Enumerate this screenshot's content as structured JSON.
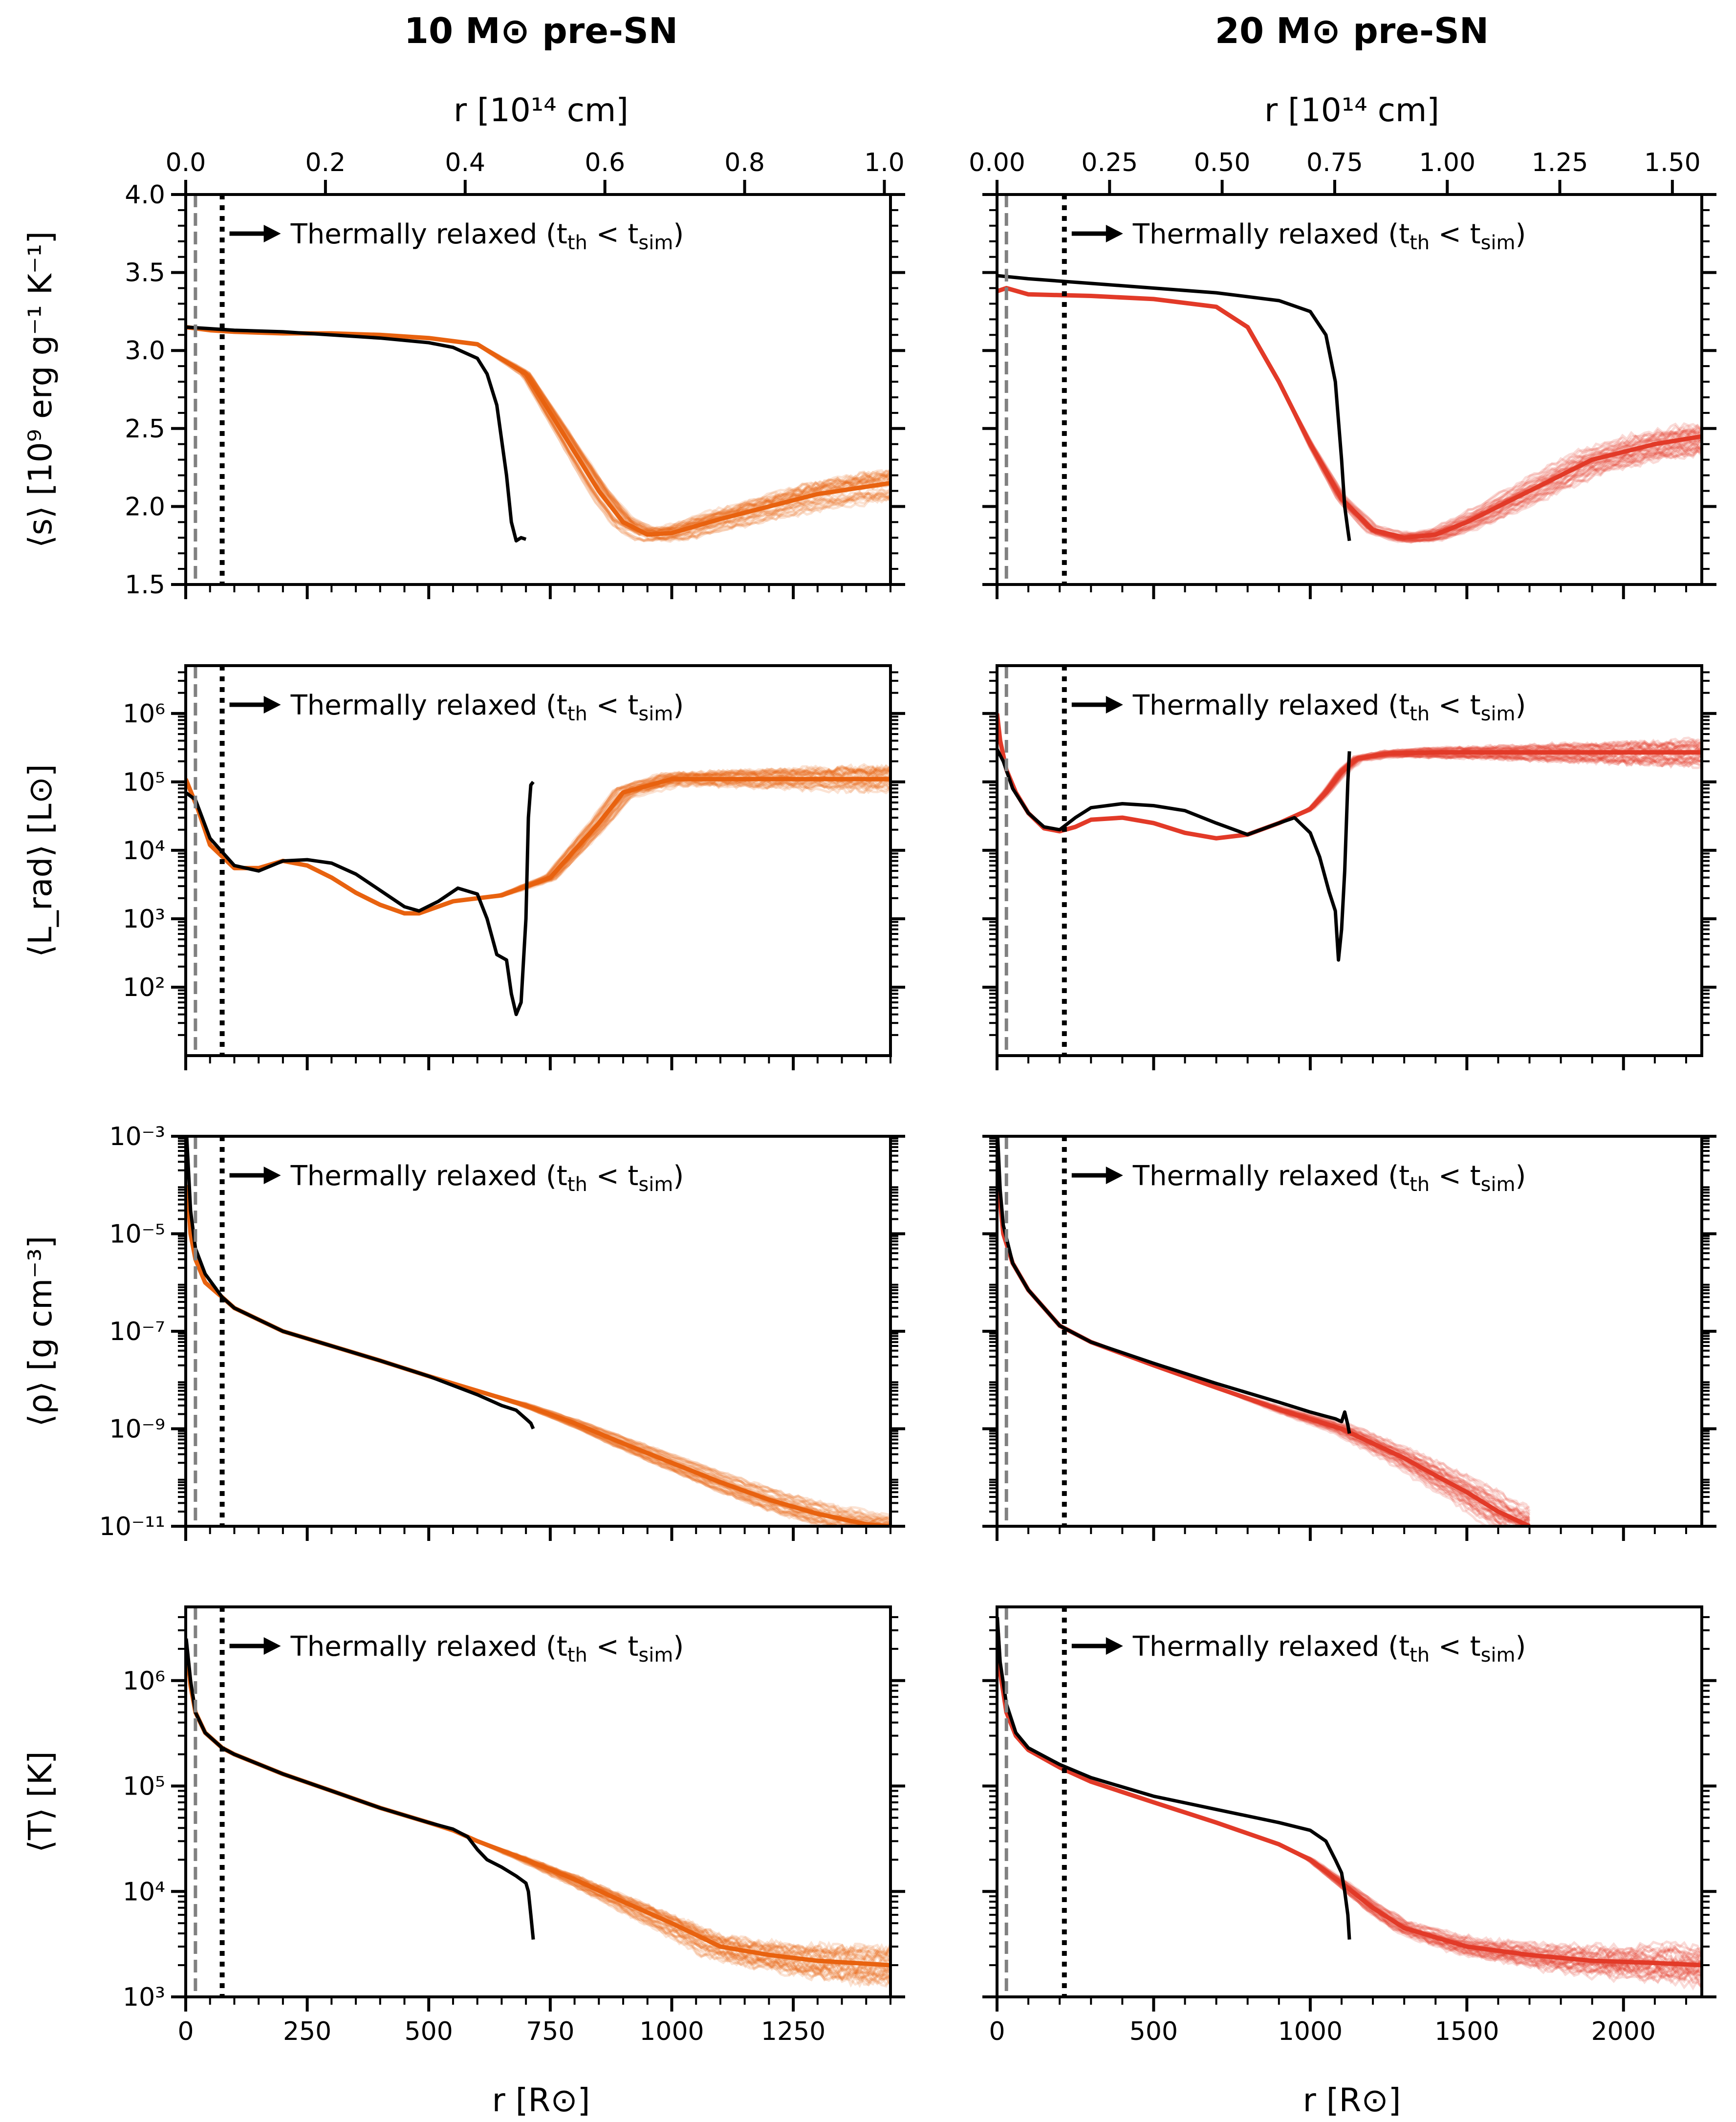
{
  "columns": [
    {
      "title": "10 M⊙ pre-SN",
      "top_axis_label": "r [10¹⁴ cm]",
      "top_ticks": [
        "0.0",
        "0.2",
        "0.4",
        "0.6",
        "0.8",
        "1.0"
      ],
      "top_tick_values": [
        0,
        0.2,
        0.4,
        0.6,
        0.8,
        1.0
      ]
    },
    {
      "title": "20 M⊙ pre-SN",
      "top_axis_label": "r [10¹⁴ cm]",
      "top_ticks": [
        "0.00",
        "0.25",
        "0.50",
        "0.75",
        "1.00",
        "1.25",
        "1.50"
      ],
      "top_tick_values": [
        0,
        0.25,
        0.5,
        0.75,
        1.0,
        1.25,
        1.5
      ]
    }
  ],
  "xlabel": "r [R⊙]",
  "annotation": "Thermally relaxed (t_th < t_sim)",
  "colors": {
    "m10": "#e8620f",
    "m20": "#e23a28",
    "model": "#000000",
    "dashed": "#808080"
  },
  "chart_data": [
    {
      "type": "line",
      "panel": "10 M⊙ entropy",
      "ylabel": "⟨s⟩ [10⁹ erg g⁻¹ K⁻¹]",
      "yscale": "linear",
      "ylim": [
        1.5,
        4.0
      ],
      "xlim": [
        0,
        1450
      ],
      "yticks": [
        "1.5",
        "2.0",
        "2.5",
        "3.0",
        "3.5",
        "4.0"
      ],
      "xticks": [
        "0",
        "250",
        "500",
        "750",
        "1000",
        "1250"
      ],
      "vlines": {
        "dashed": 20,
        "dotted": 75
      },
      "series": [
        {
          "role": "simulation",
          "x": [
            0,
            50,
            100,
            200,
            300,
            400,
            500,
            600,
            700,
            750,
            800,
            850,
            900,
            950,
            1000,
            1100,
            1200,
            1300,
            1450
          ],
          "y": [
            3.15,
            3.13,
            3.12,
            3.11,
            3.11,
            3.1,
            3.08,
            3.04,
            2.85,
            2.6,
            2.35,
            2.1,
            1.9,
            1.82,
            1.83,
            1.92,
            2.0,
            2.08,
            2.15
          ]
        },
        {
          "role": "model",
          "x": [
            0,
            50,
            100,
            200,
            300,
            400,
            500,
            550,
            600,
            620,
            640,
            660,
            670,
            680,
            690,
            700
          ],
          "y": [
            3.15,
            3.14,
            3.13,
            3.12,
            3.1,
            3.08,
            3.05,
            3.02,
            2.95,
            2.85,
            2.65,
            2.2,
            1.9,
            1.78,
            1.8,
            1.79
          ]
        }
      ]
    },
    {
      "type": "line",
      "panel": "20 M⊙ entropy",
      "ylabel": "",
      "yscale": "linear",
      "ylim": [
        1.5,
        4.0
      ],
      "xlim": [
        0,
        2250
      ],
      "yticks": [
        "1.5",
        "2.0",
        "2.5",
        "3.0",
        "3.5",
        "4.0"
      ],
      "xticks": [
        "0",
        "500",
        "1000",
        "1500",
        "2000"
      ],
      "vlines": {
        "dashed": 30,
        "dotted": 215
      },
      "series": [
        {
          "role": "simulation",
          "x": [
            0,
            30,
            100,
            300,
            500,
            700,
            800,
            900,
            1000,
            1100,
            1200,
            1300,
            1400,
            1500,
            1700,
            1900,
            2100,
            2250
          ],
          "y": [
            3.38,
            3.4,
            3.36,
            3.35,
            3.33,
            3.28,
            3.15,
            2.8,
            2.4,
            2.05,
            1.85,
            1.8,
            1.82,
            1.9,
            2.1,
            2.3,
            2.4,
            2.45
          ]
        },
        {
          "role": "model",
          "x": [
            0,
            100,
            300,
            500,
            700,
            900,
            1000,
            1050,
            1080,
            1100,
            1110,
            1120,
            1125
          ],
          "y": [
            3.48,
            3.46,
            3.43,
            3.4,
            3.37,
            3.32,
            3.25,
            3.1,
            2.8,
            2.3,
            2.0,
            1.85,
            1.78
          ]
        }
      ]
    },
    {
      "type": "line",
      "panel": "10 M⊙ luminosity",
      "ylabel": "⟨L_rad⟩ [L⊙]",
      "yscale": "log",
      "ylim": [
        10,
        5000000
      ],
      "xlim": [
        0,
        1450
      ],
      "yticks": [
        "10²",
        "10³",
        "10⁴",
        "10⁵",
        "10⁶"
      ],
      "ytick_values": [
        100,
        1000,
        10000,
        100000,
        1000000
      ],
      "xticks": [
        "0",
        "250",
        "500",
        "750",
        "1000",
        "1250"
      ],
      "vlines": {
        "dashed": 20,
        "dotted": 75
      },
      "series": [
        {
          "role": "simulation",
          "x": [
            0,
            25,
            50,
            100,
            150,
            200,
            250,
            300,
            350,
            400,
            450,
            480,
            550,
            650,
            750,
            850,
            900,
            1000,
            1100,
            1250,
            1450
          ],
          "y": [
            110000,
            40000,
            12000,
            5500,
            5500,
            7000,
            6000,
            4000,
            2400,
            1600,
            1200,
            1200,
            1800,
            2200,
            4000,
            25000,
            70000,
            110000,
            110000,
            110000,
            110000
          ]
        },
        {
          "role": "model",
          "x": [
            0,
            20,
            50,
            100,
            150,
            200,
            250,
            300,
            350,
            400,
            450,
            480,
            520,
            560,
            600,
            620,
            640,
            660,
            670,
            680,
            690,
            700,
            705,
            710,
            715
          ],
          "y": [
            70000,
            55000,
            15000,
            6000,
            5000,
            7000,
            7300,
            6500,
            4500,
            2600,
            1500,
            1300,
            1800,
            2800,
            2300,
            1000,
            300,
            250,
            80,
            40,
            60,
            1000,
            30000,
            90000,
            100000
          ]
        }
      ]
    },
    {
      "type": "line",
      "panel": "20 M⊙ luminosity",
      "ylabel": "",
      "yscale": "log",
      "ylim": [
        10,
        5000000
      ],
      "xlim": [
        0,
        2250
      ],
      "yticks": [
        "10²",
        "10³",
        "10⁴",
        "10⁵",
        "10⁶"
      ],
      "ytick_values": [
        100,
        1000,
        10000,
        100000,
        1000000
      ],
      "xticks": [
        "0",
        "500",
        "1000",
        "1500",
        "2000"
      ],
      "vlines": {
        "dashed": 30,
        "dotted": 215
      },
      "series": [
        {
          "role": "simulation",
          "x": [
            0,
            10,
            30,
            60,
            100,
            150,
            200,
            250,
            300,
            400,
            500,
            600,
            700,
            800,
            900,
            1000,
            1050,
            1100,
            1150,
            1250,
            1400,
            1600,
            2000,
            2250
          ],
          "y": [
            1000000,
            400000,
            150000,
            70000,
            35000,
            21000,
            19000,
            22000,
            28000,
            30000,
            25000,
            18000,
            15000,
            17000,
            25000,
            40000,
            70000,
            140000,
            220000,
            260000,
            270000,
            270000,
            270000,
            270000
          ]
        },
        {
          "role": "model",
          "x": [
            0,
            20,
            50,
            100,
            150,
            200,
            250,
            300,
            400,
            500,
            600,
            700,
            800,
            900,
            950,
            1000,
            1030,
            1060,
            1080,
            1090,
            1100,
            1110,
            1120,
            1125
          ],
          "y": [
            300000,
            200000,
            80000,
            35000,
            22000,
            20000,
            30000,
            42000,
            48000,
            45000,
            38000,
            25000,
            17000,
            25000,
            30000,
            18000,
            8000,
            2500,
            1300,
            250,
            700,
            5000,
            100000,
            280000
          ]
        }
      ]
    },
    {
      "type": "line",
      "panel": "10 M⊙ density",
      "ylabel": "⟨ρ⟩ [g cm⁻³]",
      "yscale": "log",
      "ylim": [
        1e-11,
        0.001
      ],
      "xlim": [
        0,
        1450
      ],
      "yticks": [
        "10⁻¹¹",
        "10⁻⁹",
        "10⁻⁷",
        "10⁻⁵",
        "10⁻³"
      ],
      "ytick_values": [
        1e-11,
        1e-09,
        1e-07,
        1e-05,
        0.001
      ],
      "xticks": [
        "0",
        "250",
        "500",
        "750",
        "1000",
        "1250"
      ],
      "vlines": {
        "dashed": 20,
        "dotted": 75
      },
      "series": [
        {
          "role": "simulation",
          "x": [
            3,
            10,
            20,
            40,
            75,
            100,
            200,
            300,
            400,
            500,
            600,
            700,
            800,
            900,
            1000,
            1100,
            1200,
            1300,
            1400,
            1450
          ],
          "y": [
            0.0001,
            1e-05,
            3e-06,
            1e-06,
            5e-07,
            3e-07,
            1e-07,
            5e-08,
            2.5e-08,
            1.2e-08,
            6e-09,
            3e-09,
            1.3e-09,
            5e-10,
            2e-10,
            8e-11,
            3.5e-11,
            1.8e-11,
            1.1e-11,
            1e-11
          ]
        },
        {
          "role": "model",
          "x": [
            2,
            10,
            20,
            40,
            75,
            100,
            200,
            300,
            400,
            500,
            600,
            650,
            680,
            700,
            710,
            715
          ],
          "y": [
            0.001,
            3e-05,
            5e-06,
            1.5e-06,
            5e-07,
            3e-07,
            1e-07,
            5e-08,
            2.5e-08,
            1.2e-08,
            5e-09,
            3e-09,
            2.4e-09,
            1.6e-09,
            1.3e-09,
            1e-09
          ]
        }
      ]
    },
    {
      "type": "line",
      "panel": "20 M⊙ density",
      "ylabel": "",
      "yscale": "log",
      "ylim": [
        1e-11,
        0.001
      ],
      "xlim": [
        0,
        2250
      ],
      "yticks": [
        "10⁻¹¹",
        "10⁻⁹",
        "10⁻⁷",
        "10⁻⁵",
        "10⁻³"
      ],
      "ytick_values": [
        1e-11,
        1e-09,
        1e-07,
        1e-05,
        0.001
      ],
      "xticks": [
        "0",
        "500",
        "1000",
        "1500",
        "2000"
      ],
      "vlines": {
        "dashed": 30,
        "dotted": 215
      },
      "series": [
        {
          "role": "simulation",
          "x": [
            5,
            20,
            50,
            100,
            200,
            300,
            500,
            700,
            900,
            1100,
            1200,
            1300,
            1400,
            1500,
            1600,
            1700
          ],
          "y": [
            0.0001,
            1e-05,
            2.5e-06,
            7e-07,
            1.3e-07,
            6e-08,
            2e-08,
            7e-09,
            2.5e-09,
            1e-09,
            5e-10,
            2.5e-10,
            1.1e-10,
            5e-11,
            2e-11,
            1e-11
          ]
        },
        {
          "role": "model",
          "x": [
            2,
            10,
            20,
            50,
            100,
            200,
            300,
            500,
            700,
            900,
            1000,
            1050,
            1080,
            1100,
            1110,
            1120,
            1125
          ],
          "y": [
            0.001,
            8e-05,
            1.5e-05,
            2.5e-06,
            7e-07,
            1.3e-07,
            6e-08,
            2.2e-08,
            8.5e-09,
            3.5e-09,
            2.2e-09,
            1.8e-09,
            1.6e-09,
            1.4e-09,
            2.2e-09,
            1.2e-09,
            8e-10
          ]
        }
      ]
    },
    {
      "type": "line",
      "panel": "10 M⊙ temperature",
      "ylabel": "⟨T⟩ [K]",
      "yscale": "log",
      "ylim": [
        1000,
        5000000
      ],
      "xlim": [
        0,
        1450
      ],
      "yticks": [
        "10³",
        "10⁴",
        "10⁵",
        "10⁶"
      ],
      "ytick_values": [
        1000,
        10000,
        100000,
        1000000
      ],
      "xticks": [
        "0",
        "250",
        "500",
        "750",
        "1000",
        "1250"
      ],
      "vlines": {
        "dashed": 20,
        "dotted": 75
      },
      "series": [
        {
          "role": "simulation",
          "x": [
            2,
            10,
            20,
            40,
            75,
            100,
            200,
            300,
            400,
            500,
            550,
            600,
            700,
            800,
            900,
            1000,
            1100,
            1200,
            1300,
            1450
          ],
          "y": [
            2000000,
            900000,
            500000,
            320000,
            230000,
            200000,
            130000,
            90000,
            62000,
            45000,
            38000,
            30000,
            20000,
            13000,
            8000,
            5000,
            3000,
            2500,
            2200,
            2000
          ]
        },
        {
          "role": "model",
          "x": [
            1,
            10,
            20,
            40,
            75,
            100,
            200,
            300,
            400,
            500,
            550,
            580,
            600,
            620,
            650,
            680,
            700,
            705,
            710,
            715
          ],
          "y": [
            2500000,
            1000000,
            500000,
            320000,
            230000,
            200000,
            130000,
            90000,
            62000,
            45000,
            39000,
            33000,
            25000,
            20000,
            17000,
            14000,
            12000,
            10000,
            6000,
            3500
          ]
        }
      ]
    },
    {
      "type": "line",
      "panel": "20 M⊙ temperature",
      "ylabel": "",
      "yscale": "log",
      "ylim": [
        1000,
        5000000
      ],
      "xlim": [
        0,
        2250
      ],
      "yticks": [
        "10³",
        "10⁴",
        "10⁵",
        "10⁶"
      ],
      "ytick_values": [
        1000,
        10000,
        100000,
        1000000
      ],
      "xticks": [
        "0",
        "500",
        "1000",
        "1500",
        "2000"
      ],
      "vlines": {
        "dashed": 30,
        "dotted": 215
      },
      "series": [
        {
          "role": "simulation",
          "x": [
            2,
            10,
            30,
            60,
            100,
            200,
            300,
            500,
            700,
            900,
            1000,
            1100,
            1200,
            1300,
            1500,
            1700,
            1900,
            2100,
            2250
          ],
          "y": [
            3000000,
            1200000,
            500000,
            300000,
            220000,
            150000,
            110000,
            70000,
            45000,
            28000,
            20000,
            12000,
            7000,
            4500,
            3000,
            2500,
            2200,
            2100,
            2000
          ]
        },
        {
          "role": "model",
          "x": [
            1,
            10,
            30,
            60,
            100,
            200,
            300,
            500,
            700,
            900,
            1000,
            1050,
            1080,
            1100,
            1110,
            1120,
            1125
          ],
          "y": [
            4000000,
            1500000,
            600000,
            320000,
            230000,
            160000,
            120000,
            80000,
            60000,
            45000,
            38000,
            30000,
            20000,
            15000,
            10000,
            6000,
            3500
          ]
        }
      ]
    }
  ]
}
